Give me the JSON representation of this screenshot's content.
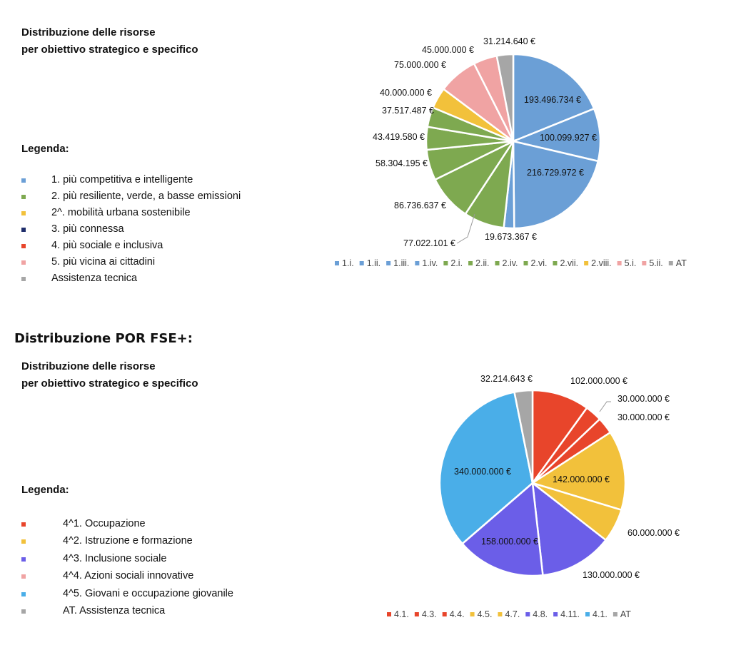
{
  "fesr": {
    "subtitle_line1": "Distribuzione delle risorse",
    "subtitle_line2": "per obiettivo strategico e specifico",
    "legend_title": "Legenda:",
    "legend": [
      {
        "label": "1. più competitiva e intelligente",
        "color": "#6b9fd6"
      },
      {
        "label": "2. più resiliente, verde, a basse emissioni",
        "color": "#7ea950"
      },
      {
        "label": "2^. mobilità urbana sostenibile",
        "color": "#f2c13b"
      },
      {
        "label": "3. più connessa",
        "color": "#1f2e6b"
      },
      {
        "label": "4. più sociale e inclusiva",
        "color": "#e8452b"
      },
      {
        "label": "5. più vicina ai cittadini",
        "color": "#f0a3a3"
      },
      {
        "label": "Assistenza tecnica",
        "color": "#a6a6a6"
      }
    ]
  },
  "fse": {
    "section_title": "Distribuzione POR FSE+:",
    "subtitle_line1": "Distribuzione delle risorse",
    "subtitle_line2": "per obiettivo strategico e specifico",
    "legend_title": "Legenda:",
    "legend": [
      {
        "label": "4^1. Occupazione",
        "color": "#e8452b"
      },
      {
        "label": "4^2. Istruzione e formazione",
        "color": "#f2c13b"
      },
      {
        "label": "4^3. Inclusione sociale",
        "color": "#6b5ee8"
      },
      {
        "label": "4^4. Azioni sociali innovative",
        "color": "#f0a3a3"
      },
      {
        "label": "4^5. Giovani e occupazione giovanile",
        "color": "#4aaee8"
      },
      {
        "label": "AT. Assistenza tecnica",
        "color": "#a6a6a6"
      }
    ]
  },
  "chart_data": [
    {
      "type": "pie",
      "categories": [
        "1.i.",
        "1.ii.",
        "1.iii.",
        "1.iv.",
        "2.i.",
        "2.ii.",
        "2.iv.",
        "2.vi.",
        "2.vii.",
        "2.viii.",
        "5.i.",
        "5.ii.",
        "AT"
      ],
      "values": [
        193496734,
        100099927,
        216729972,
        19673367,
        77022101,
        86736637,
        58304195,
        43419580,
        37517487,
        40000000,
        75000000,
        45000000,
        31214640
      ],
      "value_labels": [
        "193.496.734 €",
        "100.099.927 €",
        "216.729.972 €",
        "19.673.367 €",
        "77.022.101 €",
        "86.736.637 €",
        "58.304.195 €",
        "43.419.580 €",
        "37.517.487 €",
        "40.000.000 €",
        "75.000.000 €",
        "45.000.000 €",
        "31.214.640 €"
      ],
      "colors": [
        "#6b9fd6",
        "#6b9fd6",
        "#6b9fd6",
        "#6b9fd6",
        "#7ea950",
        "#7ea950",
        "#7ea950",
        "#7ea950",
        "#7ea950",
        "#f2c13b",
        "#f0a3a3",
        "#f0a3a3",
        "#a6a6a6"
      ],
      "legend_placement": "bottom"
    },
    {
      "type": "pie",
      "categories": [
        "4.1.",
        "4.3.",
        "4.4.",
        "4.5.",
        "4.7.",
        "4.8.",
        "4.11.",
        "4.1.",
        "AT"
      ],
      "values": [
        102000000,
        30000000,
        30000000,
        142000000,
        60000000,
        130000000,
        158000000,
        340000000,
        32214643
      ],
      "value_labels": [
        "102.000.000 €",
        "30.000.000 €",
        "30.000.000 €",
        "142.000.000 €",
        "60.000.000 €",
        "130.000.000 €",
        "158.000.000 €",
        "340.000.000 €",
        "32.214.643 €"
      ],
      "colors": [
        "#e8452b",
        "#e8452b",
        "#e8452b",
        "#f2c13b",
        "#f2c13b",
        "#6b5ee8",
        "#6b5ee8",
        "#4aaee8",
        "#a6a6a6"
      ],
      "legend_placement": "bottom"
    }
  ]
}
